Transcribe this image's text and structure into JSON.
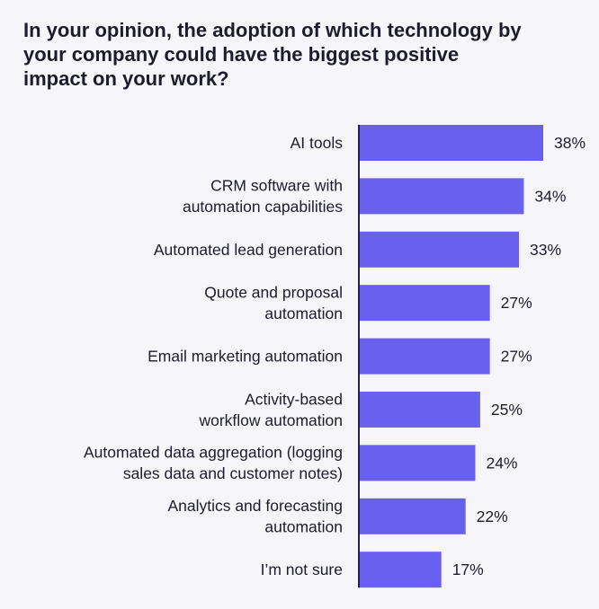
{
  "chart_data": {
    "type": "bar",
    "orientation": "horizontal",
    "title": "In your opinion, the adoption of which technology by your company could have the biggest positive impact on your work?",
    "categories": [
      [
        "AI tools"
      ],
      [
        "CRM software with",
        "automation capabilities"
      ],
      [
        "Automated lead generation"
      ],
      [
        "Quote and proposal",
        "automation"
      ],
      [
        "Email marketing automation"
      ],
      [
        "Activity-based",
        "workflow automation"
      ],
      [
        "Automated data aggregation (logging",
        "sales data and customer notes)"
      ],
      [
        "Analytics and forecasting",
        "automation"
      ],
      [
        "I’m not sure"
      ]
    ],
    "values": [
      38,
      34,
      33,
      27,
      27,
      25,
      24,
      22,
      17
    ],
    "value_labels": [
      "38%",
      "34%",
      "33%",
      "27%",
      "27%",
      "25%",
      "24%",
      "22%",
      "17%"
    ],
    "unit": "%",
    "grid": false,
    "legend": "none",
    "colors": {
      "bar": "#6a60f0",
      "axis": "#22223a",
      "background": "#f6f6fa"
    }
  }
}
